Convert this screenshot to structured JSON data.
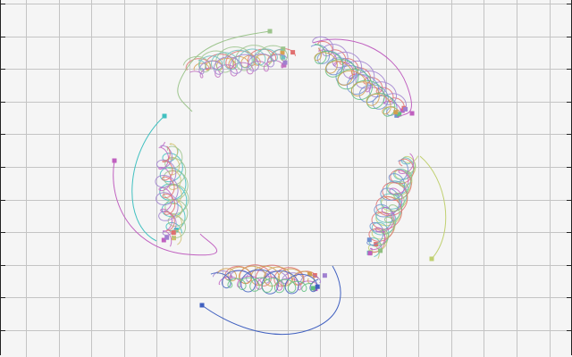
{
  "scene": {
    "background": "#f5f5f5",
    "grid_color": "#c4c4c4",
    "axis_color": "#222222",
    "clusters": [
      {
        "id": "top-left",
        "trails": [
          {
            "color": "#e07070",
            "seed": 1
          },
          {
            "color": "#d9a050",
            "seed": 2
          },
          {
            "color": "#9cc48c",
            "seed": 3
          },
          {
            "color": "#c06fc0",
            "seed": 4
          },
          {
            "color": "#70c0c0",
            "seed": 5
          },
          {
            "color": "#a080d0",
            "seed": 6
          }
        ]
      },
      {
        "id": "top-right",
        "trails": [
          {
            "color": "#c060c0",
            "seed": 7
          },
          {
            "color": "#e07070",
            "seed": 8
          },
          {
            "color": "#a080d0",
            "seed": 9
          },
          {
            "color": "#7090d0",
            "seed": 10
          },
          {
            "color": "#60c080",
            "seed": 11
          },
          {
            "color": "#d0a050",
            "seed": 12
          }
        ]
      },
      {
        "id": "right",
        "trails": [
          {
            "color": "#c0d070",
            "seed": 13
          },
          {
            "color": "#60c0c0",
            "seed": 14
          },
          {
            "color": "#e07070",
            "seed": 15
          },
          {
            "color": "#7090d0",
            "seed": 16
          },
          {
            "color": "#c060c0",
            "seed": 17
          },
          {
            "color": "#90c080",
            "seed": 18
          }
        ]
      },
      {
        "id": "bottom",
        "trails": [
          {
            "color": "#e07070",
            "seed": 19
          },
          {
            "color": "#c060c0",
            "seed": 20
          },
          {
            "color": "#a080d0",
            "seed": 21
          },
          {
            "color": "#d0a050",
            "seed": 22
          },
          {
            "color": "#4060c0",
            "seed": 23
          },
          {
            "color": "#60c080",
            "seed": 24
          }
        ]
      },
      {
        "id": "left",
        "trails": [
          {
            "color": "#40c0c0",
            "seed": 25
          },
          {
            "color": "#c060c0",
            "seed": 26
          },
          {
            "color": "#d0c070",
            "seed": 27
          },
          {
            "color": "#9cc48c",
            "seed": 28
          },
          {
            "color": "#a080d0",
            "seed": 29
          },
          {
            "color": "#e07070",
            "seed": 30
          }
        ]
      }
    ]
  }
}
